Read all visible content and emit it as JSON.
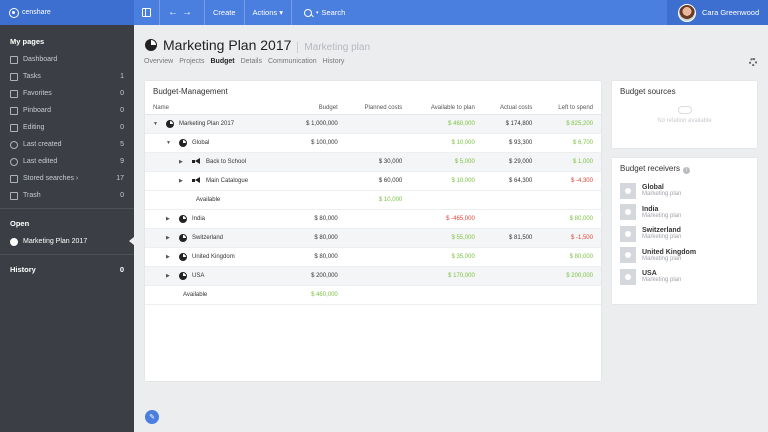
{
  "app": {
    "brand": "censhare"
  },
  "topbar": {
    "create": "Create",
    "actions": "Actions ▾",
    "search": "Search",
    "user_name": "Cara Greenwood",
    "back_glyph": "←",
    "forward_glyph": "→"
  },
  "sidebar": {
    "my_pages": "My pages",
    "items": [
      {
        "label": "Dashboard",
        "count": "",
        "icon": "dashboard-icon"
      },
      {
        "label": "Tasks",
        "count": "1",
        "icon": "tasks-icon"
      },
      {
        "label": "Favorites",
        "count": "0",
        "icon": "star-icon"
      },
      {
        "label": "Pinboard",
        "count": "0",
        "icon": "pin-icon"
      },
      {
        "label": "Editing",
        "count": "0",
        "icon": "pencil-icon"
      },
      {
        "label": "Last created",
        "count": "5",
        "icon": "clock-icon"
      },
      {
        "label": "Last edited",
        "count": "9",
        "icon": "clock-icon"
      },
      {
        "label": "Stored searches ›",
        "count": "17",
        "icon": "search-icon"
      },
      {
        "label": "Trash",
        "count": "0",
        "icon": "trash-icon"
      }
    ],
    "open": "Open",
    "open_item": "Marketing Plan 2017",
    "history": "History",
    "history_count": "0"
  },
  "page": {
    "title": "Marketing Plan 2017",
    "subtitle": "Marketing plan",
    "tabs": [
      "Overview",
      "Projects",
      "Budget",
      "Details",
      "Communication",
      "History"
    ],
    "active_tab": "Budget"
  },
  "budget": {
    "title": "Budget-Management",
    "columns": [
      "Name",
      "Budget",
      "Planned costs",
      "Available to plan",
      "Actual costs",
      "Left to spend"
    ],
    "rows": [
      {
        "name": "Marketing Plan 2017",
        "indent": 0,
        "toggle": "▼",
        "icon": "pie",
        "budget": "$ 1,000,000",
        "planned": "",
        "available": "$ 460,000",
        "available_color": "green",
        "actual": "$ 174,800",
        "left": "$ 825,200",
        "left_color": "green",
        "shade": true
      },
      {
        "name": "Global",
        "indent": 1,
        "toggle": "▼",
        "icon": "pie",
        "budget": "$ 100,000",
        "planned": "",
        "available": "$ 10,000",
        "available_color": "green",
        "actual": "$ 93,300",
        "left": "$ 6,700",
        "left_color": "green",
        "shade": false
      },
      {
        "name": "Back to School",
        "indent": 2,
        "toggle": "▶",
        "icon": "megaphone",
        "budget": "",
        "planned": "$ 30,000",
        "available": "$ 5,000",
        "available_color": "green",
        "actual": "$ 29,000",
        "left": "$ 1,000",
        "left_color": "green",
        "shade": true
      },
      {
        "name": "Main Catalogue",
        "indent": 2,
        "toggle": "▶",
        "icon": "megaphone",
        "budget": "",
        "planned": "$ 60,000",
        "available": "$ 10,000",
        "available_color": "green",
        "actual": "$ 64,300",
        "left": "$ -4,300",
        "left_color": "red",
        "shade": false
      },
      {
        "name": "Available",
        "indent": 2,
        "toggle": "",
        "icon": "",
        "budget": "",
        "planned": "$ 10,000",
        "planned_color": "green",
        "available": "",
        "actual": "",
        "left": "",
        "shade": false
      },
      {
        "name": "India",
        "indent": 1,
        "toggle": "▶",
        "icon": "pie",
        "budget": "$ 80,000",
        "planned": "",
        "available": "$ -465,000",
        "available_color": "red",
        "actual": "",
        "left": "$ 80,000",
        "left_color": "green",
        "shade": false
      },
      {
        "name": "Switzerland",
        "indent": 1,
        "toggle": "▶",
        "icon": "pie",
        "budget": "$ 80,000",
        "planned": "",
        "available": "$ 55,000",
        "available_color": "green",
        "actual": "$ 81,500",
        "left": "$ -1,500",
        "left_color": "red",
        "shade": true
      },
      {
        "name": "United Kingdom",
        "indent": 1,
        "toggle": "▶",
        "icon": "pie",
        "budget": "$ 80,000",
        "planned": "",
        "available": "$ 35,000",
        "available_color": "green",
        "actual": "",
        "left": "$ 80,000",
        "left_color": "green",
        "shade": false
      },
      {
        "name": "USA",
        "indent": 1,
        "toggle": "▶",
        "icon": "pie",
        "budget": "$ 200,000",
        "planned": "",
        "available": "$ 170,000",
        "available_color": "green",
        "actual": "",
        "left": "$ 200,000",
        "left_color": "green",
        "shade": true
      },
      {
        "name": "Available",
        "indent": 1,
        "toggle": "",
        "icon": "",
        "budget": "$ 460,000",
        "budget_color": "green",
        "planned": "",
        "available": "",
        "actual": "",
        "left": "",
        "shade": false
      }
    ]
  },
  "sources": {
    "title": "Budget sources",
    "empty": "No relation available"
  },
  "receivers": {
    "title": "Budget receivers",
    "info_glyph": "i",
    "items": [
      {
        "name": "Global",
        "type": "Marketing plan"
      },
      {
        "name": "India",
        "type": "Marketing plan"
      },
      {
        "name": "Switzerland",
        "type": "Marketing plan"
      },
      {
        "name": "United Kingdom",
        "type": "Marketing plan"
      },
      {
        "name": "USA",
        "type": "Marketing plan"
      }
    ]
  },
  "colors": {
    "accent": "#4a7fe0",
    "sidebar": "#3b3f45",
    "positive": "#7cc242",
    "negative": "#e0453a"
  }
}
